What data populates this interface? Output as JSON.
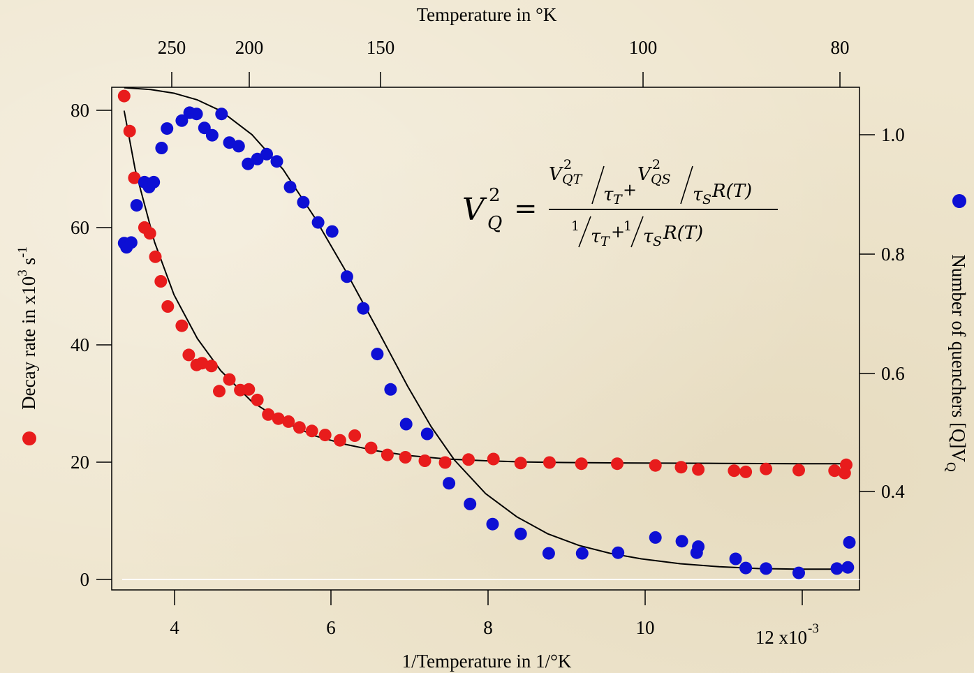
{
  "chart_data": {
    "type": "scatter",
    "title": "",
    "top_axis_label": "Temperature in °K",
    "top_ticks": [
      "250",
      "200",
      "150",
      "100",
      "80"
    ],
    "xlabel": "1/Temperature in 1/°K",
    "x_ticks": [
      "4",
      "6",
      "8",
      "10",
      "12 x10"
    ],
    "x_exponent": "-3",
    "xlim": [
      3.2,
      12.8
    ],
    "ylabel_left": "Decay rate in x10",
    "ylabel_left_sup": "3",
    "ylabel_left_unit": " s",
    "ylabel_left_unit_sup": "-1",
    "left_ticks": [
      "0",
      "20",
      "40",
      "60",
      "80"
    ],
    "ylim_left": [
      -2,
      84
    ],
    "ylabel_right": "Number of quenchers [Q]V",
    "ylabel_right_sub": "Q",
    "right_ticks": [
      "0.4",
      "0.6",
      "0.8",
      "1.0"
    ],
    "ylim_right": [
      0.238,
      1.0627
    ],
    "grid": false,
    "equation": {
      "lhs_base": "V",
      "lhs_sup": "2",
      "lhs_sub": "Q",
      "equals": "=",
      "num_a_base": "V",
      "num_a_sup": "2",
      "num_a_sub": "QT",
      "num_a_den_base": "τ",
      "num_a_den_sub": "T",
      "plus": "+",
      "num_b_base": "V",
      "num_b_sup": "2",
      "num_b_sub": "QS",
      "num_b_den_base": "τ",
      "num_b_den_sub": "S",
      "num_b_tail": "R(T)",
      "den_one": "1",
      "den_a_base": "τ",
      "den_a_sub": "T",
      "den_b_base": "τ",
      "den_b_sub": "S",
      "den_b_tail": "R(T)"
    },
    "series": [
      {
        "name": "Decay rate",
        "color": "#e81c1c",
        "axis": "left",
        "x": [
          3.36,
          3.43,
          3.49,
          3.62,
          3.69,
          3.76,
          3.83,
          3.92,
          4.1,
          4.19,
          4.29,
          4.36,
          4.48,
          4.58,
          4.71,
          4.85,
          4.96,
          5.07,
          5.21,
          5.34,
          5.47,
          5.61,
          5.77,
          5.94,
          6.13,
          6.32,
          6.53,
          6.74,
          6.97,
          7.22,
          7.48,
          7.78,
          8.1,
          8.45,
          8.82,
          9.23,
          9.69,
          10.18,
          10.51,
          10.73,
          11.19,
          11.34,
          11.6,
          12.02,
          12.48,
          12.61,
          12.63
        ],
        "y": [
          82.5,
          76.5,
          68.5,
          60.0,
          59.0,
          55.0,
          50.8,
          46.5,
          43.2,
          38.2,
          36.5,
          36.8,
          36.3,
          32.0,
          34.0,
          32.2,
          32.3,
          30.5,
          28.0,
          27.3,
          26.8,
          25.8,
          25.2,
          24.5,
          23.6,
          24.4,
          22.3,
          21.1,
          20.7,
          20.1,
          19.8,
          20.3,
          20.4,
          19.7,
          19.8,
          19.6,
          19.6,
          19.3,
          19.0,
          18.6,
          18.4,
          18.2,
          18.7,
          18.5,
          18.4,
          18.0,
          19.4
        ]
      },
      {
        "name": "Number of quenchers",
        "color": "#0d0fd4",
        "axis": "right",
        "x": [
          3.36,
          3.39,
          3.45,
          3.52,
          3.62,
          3.68,
          3.74,
          3.84,
          3.91,
          4.1,
          4.2,
          4.29,
          4.39,
          4.49,
          4.61,
          4.71,
          4.83,
          4.95,
          5.07,
          5.19,
          5.32,
          5.49,
          5.66,
          5.85,
          6.03,
          6.22,
          6.43,
          6.61,
          6.78,
          6.98,
          7.25,
          7.53,
          7.8,
          8.09,
          8.45,
          8.81,
          9.24,
          9.7,
          10.18,
          10.52,
          10.71,
          10.73,
          11.21,
          11.34,
          11.6,
          12.02,
          12.51,
          12.65,
          12.67
        ],
        "y": [
          0.807,
          0.8,
          0.808,
          0.869,
          0.907,
          0.899,
          0.907,
          0.963,
          0.995,
          1.008,
          1.021,
          1.019,
          0.996,
          0.984,
          1.019,
          0.972,
          0.966,
          0.937,
          0.945,
          0.953,
          0.941,
          0.899,
          0.874,
          0.841,
          0.826,
          0.752,
          0.7,
          0.625,
          0.567,
          0.51,
          0.494,
          0.413,
          0.379,
          0.346,
          0.33,
          0.298,
          0.298,
          0.299,
          0.324,
          0.318,
          0.299,
          0.309,
          0.289,
          0.274,
          0.273,
          0.266,
          0.273,
          0.275,
          0.316
        ]
      }
    ],
    "fit_lines": [
      {
        "axis": "left",
        "color": "#000000",
        "x": [
          3.36,
          3.5,
          3.75,
          4.0,
          4.3,
          4.6,
          5.0,
          5.4,
          5.8,
          6.2,
          6.6,
          7.0,
          7.5,
          8.0,
          8.5,
          9.0,
          10.0,
          11.0,
          12.0,
          12.6
        ],
        "y": [
          80.0,
          70.0,
          57.5,
          48.5,
          41.0,
          35.5,
          30.2,
          26.8,
          24.4,
          22.9,
          21.8,
          21.0,
          20.4,
          20.1,
          19.9,
          19.8,
          19.7,
          19.65,
          19.6,
          19.6
        ]
      },
      {
        "axis": "right",
        "color": "#000000",
        "x": [
          3.36,
          3.7,
          4.0,
          4.3,
          4.6,
          5.0,
          5.4,
          5.8,
          6.2,
          6.6,
          7.0,
          7.3,
          7.6,
          8.0,
          8.4,
          8.8,
          9.2,
          9.6,
          10.0,
          10.5,
          11.0,
          11.5,
          12.0,
          12.6
        ],
        "y": [
          1.062,
          1.059,
          1.053,
          1.042,
          1.024,
          0.985,
          0.928,
          0.85,
          0.762,
          0.668,
          0.572,
          0.506,
          0.451,
          0.396,
          0.358,
          0.33,
          0.311,
          0.298,
          0.289,
          0.281,
          0.276,
          0.273,
          0.272,
          0.272
        ]
      }
    ]
  }
}
